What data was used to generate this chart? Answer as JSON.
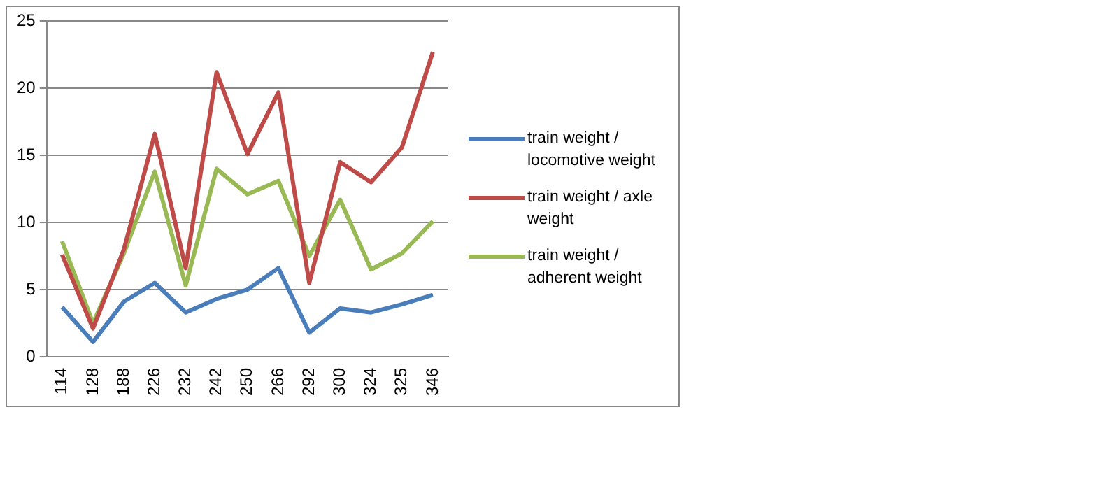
{
  "chart_data": {
    "type": "line",
    "categories": [
      "114",
      "128",
      "188",
      "226",
      "232",
      "242",
      "250",
      "266",
      "292",
      "300",
      "324",
      "325",
      "346"
    ],
    "series": [
      {
        "name": "train weight / locomotive weight",
        "color": "#4a7ebb",
        "values": [
          3.7,
          1.1,
          4.1,
          5.5,
          3.3,
          4.3,
          5.0,
          6.6,
          1.8,
          3.6,
          3.3,
          3.9,
          4.6
        ]
      },
      {
        "name": "train weight / axle weight",
        "color": "#be4b48",
        "values": [
          7.6,
          2.1,
          8.0,
          16.6,
          6.6,
          21.2,
          15.1,
          19.7,
          5.5,
          14.5,
          13.0,
          15.6,
          22.7
        ]
      },
      {
        "name": "train weight / adherent weight",
        "color": "#98b954",
        "values": [
          8.6,
          2.5,
          7.7,
          13.8,
          5.3,
          14.0,
          12.1,
          13.1,
          7.5,
          11.7,
          6.5,
          7.7,
          10.1
        ]
      }
    ],
    "ylim": [
      0,
      25
    ],
    "yticks": [
      0,
      5,
      10,
      15,
      20,
      25
    ],
    "grid": "y",
    "legend": "right",
    "marker": "none",
    "line_style": "solid"
  }
}
